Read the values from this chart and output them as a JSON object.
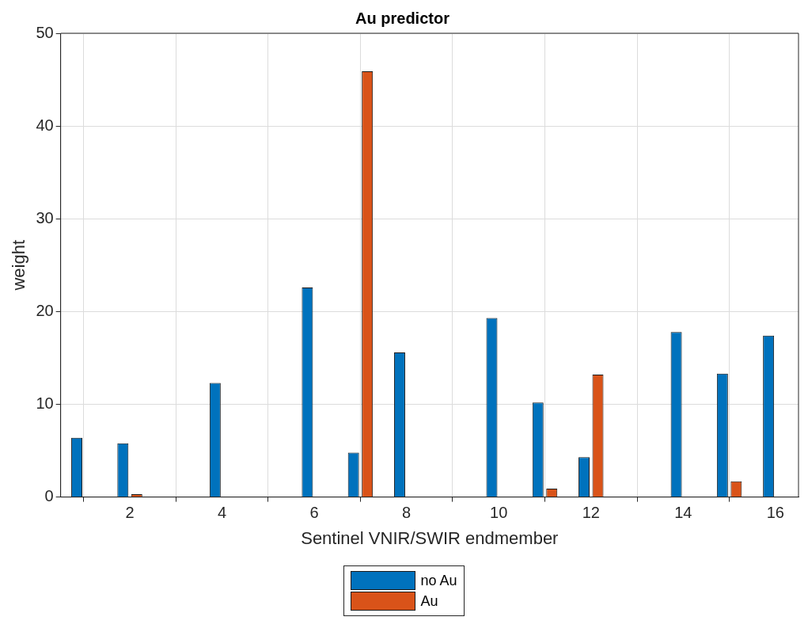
{
  "chart_data": {
    "type": "bar",
    "title": "Au predictor",
    "xlabel": "Sentinel VNIR/SWIR endmember",
    "ylabel": "weight",
    "x": [
      1,
      2,
      3,
      4,
      5,
      6,
      7,
      8,
      9,
      10,
      11,
      12,
      13,
      14,
      15,
      16
    ],
    "series": [
      {
        "name": "no Au",
        "color": "#0072bd",
        "values": [
          6.4,
          5.8,
          0,
          12.3,
          0,
          22.6,
          4.8,
          15.6,
          0,
          19.3,
          10.2,
          4.3,
          0,
          17.8,
          13.3,
          17.4
        ]
      },
      {
        "name": "Au",
        "color": "#d95319",
        "values": [
          0,
          0.3,
          0,
          0,
          0,
          0,
          45.9,
          0,
          0,
          0,
          0.9,
          13.2,
          0,
          0,
          1.7,
          0
        ]
      }
    ],
    "xlim": [
      0.5,
      16.5
    ],
    "xticks": [
      2,
      4,
      6,
      8,
      10,
      12,
      14,
      16
    ],
    "ylim": [
      0,
      50
    ],
    "yticks": [
      0,
      10,
      20,
      30,
      40,
      50
    ],
    "grid": true,
    "legend": "bottom"
  }
}
